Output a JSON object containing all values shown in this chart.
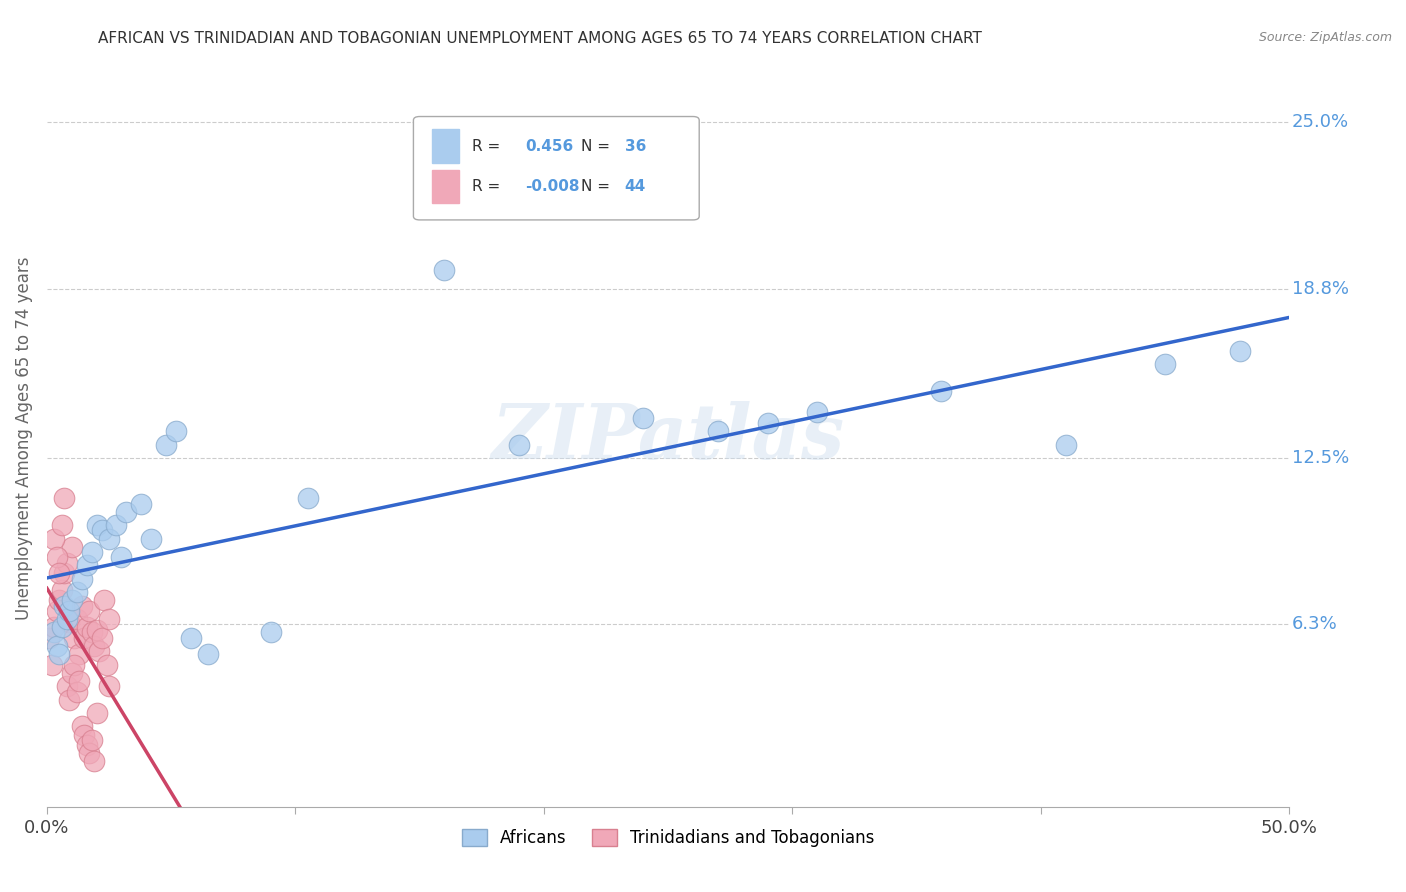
{
  "title": "AFRICAN VS TRINIDADIAN AND TOBAGONIAN UNEMPLOYMENT AMONG AGES 65 TO 74 YEARS CORRELATION CHART",
  "source": "Source: ZipAtlas.com",
  "ylabel": "Unemployment Among Ages 65 to 74 years",
  "xlim": [
    0.0,
    0.5
  ],
  "ylim": [
    -0.005,
    0.27
  ],
  "ytick_positions": [
    0.063,
    0.125,
    0.188,
    0.25
  ],
  "ytick_labels": [
    "6.3%",
    "12.5%",
    "18.8%",
    "25.0%"
  ],
  "african_color": "#aaccee",
  "african_edge": "#88aacc",
  "trini_color": "#f0a8b8",
  "trini_edge": "#d88090",
  "trend_blue": "#3366cc",
  "trend_pink_solid": "#cc4466",
  "trend_pink_dash": "#dd6688",
  "R_african": 0.456,
  "N_african": 36,
  "R_trini": -0.008,
  "N_trini": 44,
  "watermark": "ZIPatlas",
  "legend_box_color": "#dddddd",
  "right_tick_color": "#5599dd",
  "title_color": "#333333",
  "axis_label_color": "#666666",
  "background_color": "#ffffff",
  "grid_color": "#cccccc",
  "african_x": [
    0.003,
    0.004,
    0.005,
    0.006,
    0.007,
    0.008,
    0.009,
    0.01,
    0.012,
    0.014,
    0.016,
    0.018,
    0.02,
    0.022,
    0.025,
    0.028,
    0.03,
    0.032,
    0.038,
    0.042,
    0.048,
    0.052,
    0.058,
    0.065,
    0.09,
    0.105,
    0.16,
    0.19,
    0.24,
    0.27,
    0.29,
    0.31,
    0.36,
    0.41,
    0.45,
    0.48
  ],
  "african_y": [
    0.06,
    0.055,
    0.052,
    0.062,
    0.07,
    0.065,
    0.068,
    0.072,
    0.075,
    0.08,
    0.085,
    0.09,
    0.1,
    0.098,
    0.095,
    0.1,
    0.088,
    0.105,
    0.108,
    0.095,
    0.13,
    0.135,
    0.058,
    0.052,
    0.06,
    0.11,
    0.195,
    0.13,
    0.14,
    0.135,
    0.138,
    0.142,
    0.15,
    0.13,
    0.16,
    0.165
  ],
  "trini_x": [
    0.001,
    0.002,
    0.003,
    0.004,
    0.005,
    0.006,
    0.007,
    0.008,
    0.009,
    0.01,
    0.011,
    0.012,
    0.013,
    0.014,
    0.015,
    0.016,
    0.017,
    0.018,
    0.019,
    0.02,
    0.021,
    0.022,
    0.023,
    0.024,
    0.025,
    0.003,
    0.004,
    0.005,
    0.006,
    0.007,
    0.008,
    0.009,
    0.01,
    0.011,
    0.012,
    0.013,
    0.014,
    0.015,
    0.016,
    0.017,
    0.018,
    0.019,
    0.02,
    0.025
  ],
  "trini_y": [
    0.058,
    0.048,
    0.062,
    0.068,
    0.072,
    0.076,
    0.082,
    0.086,
    0.064,
    0.092,
    0.058,
    0.065,
    0.052,
    0.07,
    0.058,
    0.062,
    0.068,
    0.06,
    0.055,
    0.061,
    0.053,
    0.058,
    0.072,
    0.048,
    0.065,
    0.095,
    0.088,
    0.082,
    0.1,
    0.11,
    0.04,
    0.035,
    0.045,
    0.048,
    0.038,
    0.042,
    0.025,
    0.022,
    0.018,
    0.015,
    0.02,
    0.012,
    0.03,
    0.04
  ]
}
